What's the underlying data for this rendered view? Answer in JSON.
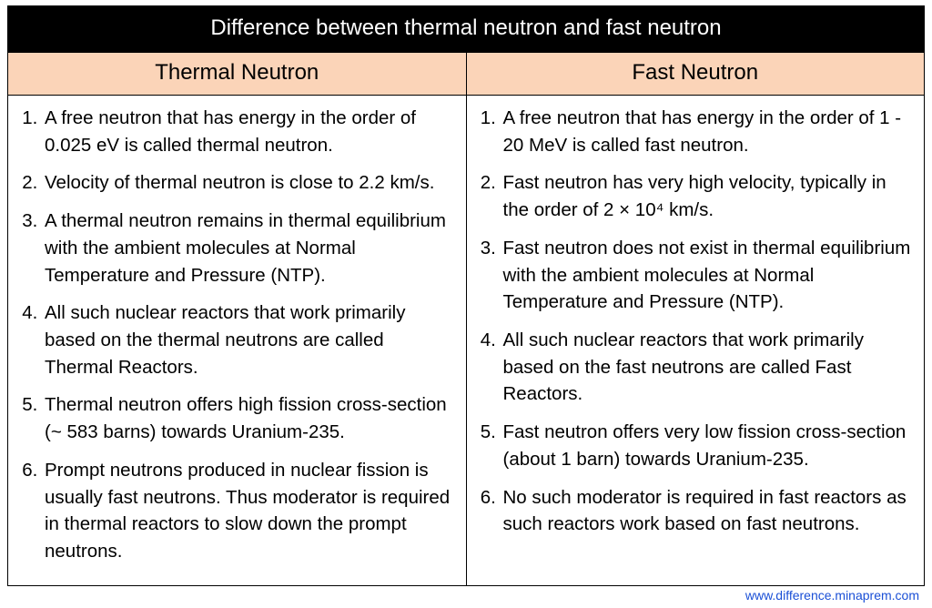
{
  "table": {
    "title": "Difference between thermal neutron and fast neutron",
    "title_bg": "#000000",
    "title_color": "#ffffff",
    "header_bg": "#fbd4b8",
    "border_color": "#000000",
    "font_family": "Arial",
    "title_fontsize": 24,
    "header_fontsize": 24,
    "body_fontsize": 20.5,
    "columns": {
      "left": {
        "header": "Thermal Neutron",
        "items": [
          "A free neutron that has energy in the order of 0.025 eV is called thermal neutron.",
          "Velocity of thermal neutron is close to 2.2 km/s.",
          "A thermal neutron remains in thermal equilibrium with the ambient molecules at Normal Temperature and Pressure (NTP).",
          "All such nuclear reactors that work primarily based on the thermal neutrons are called Thermal Reactors.",
          "Thermal neutron offers high fission cross-section (~ 583 barns) towards Uranium-235.",
          "Prompt neutrons produced in nuclear fission is usually fast neutrons. Thus moderator is required in thermal reactors to slow down the prompt neutrons."
        ]
      },
      "right": {
        "header": "Fast Neutron",
        "items": [
          "A free neutron that has energy in the order of 1 - 20 MeV is called fast neutron.",
          "Fast neutron has very high velocity, typically in the order of 2 × 10⁴ km/s.",
          "Fast neutron does not exist in thermal equilibrium with the ambient molecules at Normal Temperature and Pressure (NTP).",
          "All such nuclear reactors that work primarily based on the fast neutrons are called Fast Reactors.",
          "Fast neutron offers very low fission cross-section (about 1 barn) towards Uranium-235.",
          "No such moderator is required in fast reactors as such reactors work based on fast neutrons."
        ]
      }
    }
  },
  "source_url": "www.difference.minaprem.com",
  "source_color": "#1a4fd6"
}
